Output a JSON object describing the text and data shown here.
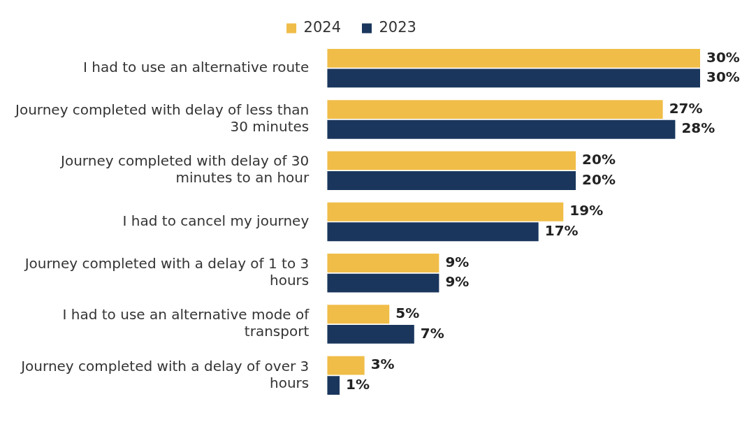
{
  "chart_data": {
    "type": "bar",
    "orientation": "horizontal",
    "categories": [
      "I had to use an alternative route",
      "Journey completed with delay of less than 30 minutes",
      "Journey completed with delay of 30 minutes to an hour",
      "I had to cancel my journey",
      "Journey completed with a delay of 1 to 3 hours",
      "I had to use an alternative mode of transport",
      "Journey completed with a delay of over 3 hours"
    ],
    "series": [
      {
        "name": "2024",
        "color": "#f0bd48",
        "values": [
          30,
          27,
          20,
          19,
          9,
          5,
          3
        ],
        "value_labels": [
          "30%",
          "27%",
          "20%",
          "19%",
          "9%",
          "5%",
          "3%"
        ]
      },
      {
        "name": "2023",
        "color": "#1a365d",
        "values": [
          30,
          28,
          20,
          17,
          9,
          7,
          1
        ],
        "value_labels": [
          "30%",
          "28%",
          "20%",
          "17%",
          "9%",
          "7%",
          "1%"
        ]
      }
    ],
    "legend": "top",
    "grid": false
  }
}
